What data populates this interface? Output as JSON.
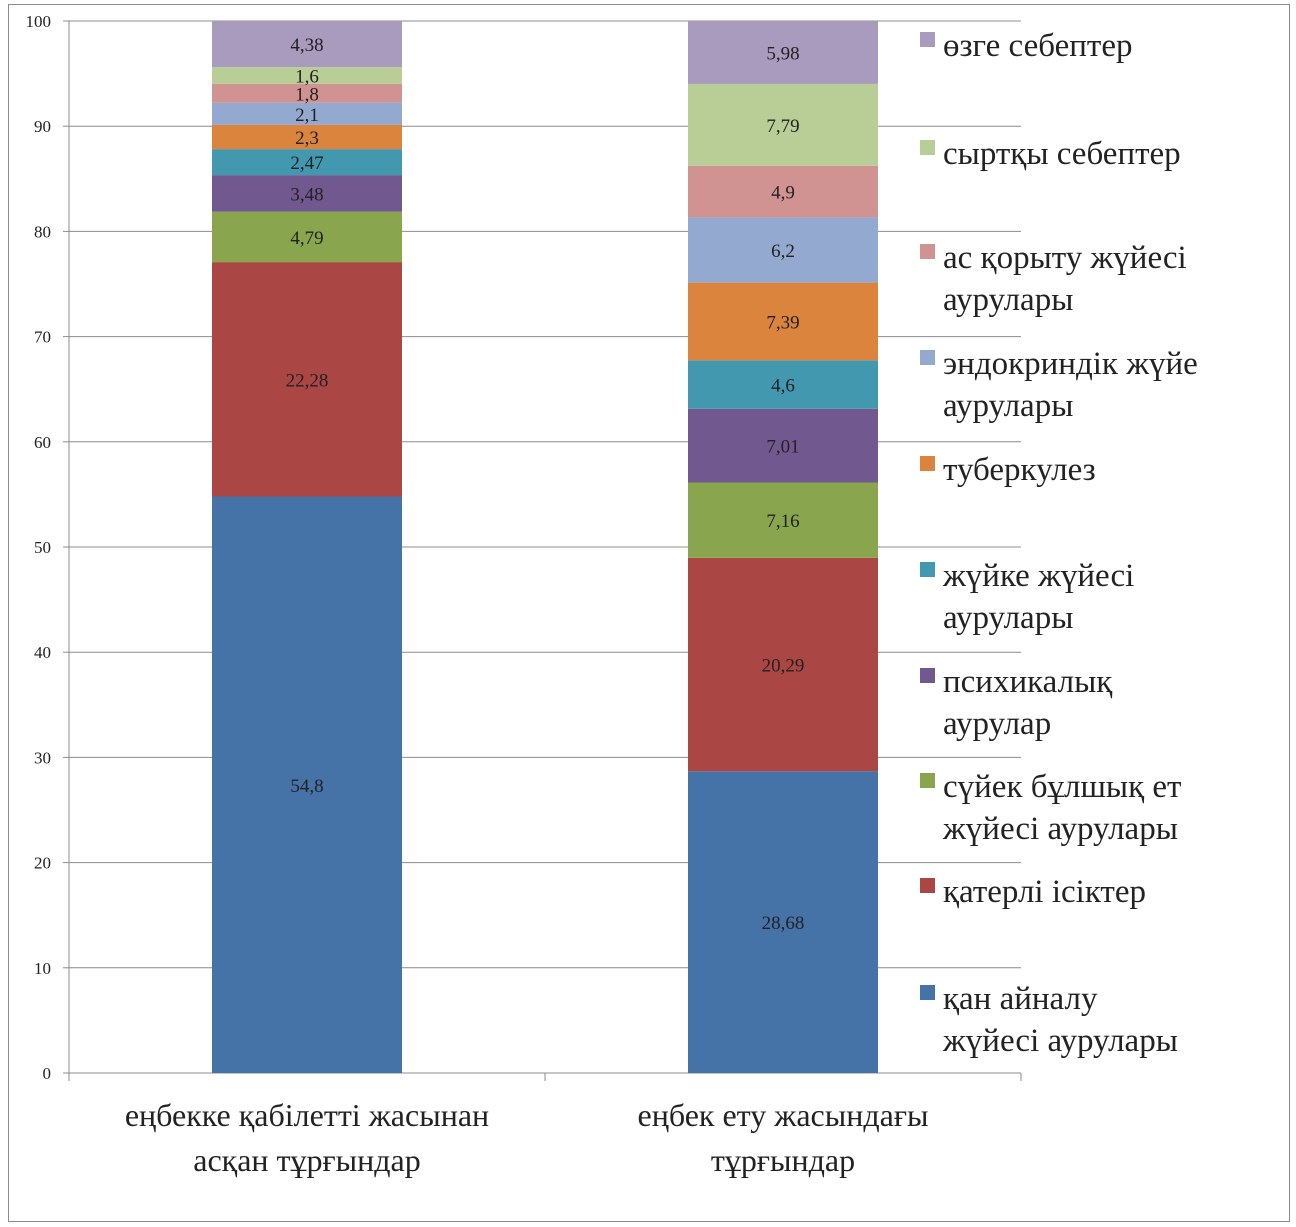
{
  "chart_data": {
    "type": "bar",
    "stacked": true,
    "ylim": [
      0,
      100
    ],
    "yticks": [
      0,
      10,
      20,
      30,
      40,
      50,
      60,
      70,
      80,
      90,
      100
    ],
    "grid": true,
    "legend_position": "right",
    "categories": [
      [
        "еңбекке қабілетті жасынан",
        "асқан тұрғындар"
      ],
      [
        "еңбек ету жасындағы",
        "тұрғындар"
      ]
    ],
    "series": [
      {
        "name": [
          "қан айналу",
          "жүйесі аурулары"
        ],
        "color": "#4572a7",
        "values": [
          54.8,
          28.68
        ],
        "labels": [
          "54,8",
          "28,68"
        ]
      },
      {
        "name": [
          "қатерлі ісіктер"
        ],
        "color": "#aa4643",
        "values": [
          22.28,
          20.29
        ],
        "labels": [
          "22,28",
          "20,29"
        ]
      },
      {
        "name": [
          "сүйек бұлшық ет",
          "жүйесі аурулары"
        ],
        "color": "#89a54e",
        "values": [
          4.79,
          7.16
        ],
        "labels": [
          "4,79",
          "7,16"
        ]
      },
      {
        "name": [
          "психикалық",
          "аурулар"
        ],
        "color": "#71588f",
        "values": [
          3.48,
          7.01
        ],
        "labels": [
          "3,48",
          "7,01"
        ]
      },
      {
        "name": [
          "жүйке жүйесі",
          "аурулары"
        ],
        "color": "#4198af",
        "values": [
          2.47,
          4.6
        ],
        "labels": [
          "2,47",
          "4,6"
        ]
      },
      {
        "name": [
          "туберкулез"
        ],
        "color": "#db843d",
        "values": [
          2.3,
          7.39
        ],
        "labels": [
          "2,3",
          "7,39"
        ]
      },
      {
        "name": [
          "эндокриндік жүйе",
          "аурулары"
        ],
        "color": "#93a9cf",
        "values": [
          2.1,
          6.2
        ],
        "labels": [
          "2,1",
          "6,2"
        ]
      },
      {
        "name": [
          "ас қорыту жүйесі",
          "аурулары"
        ],
        "color": "#d19392",
        "values": [
          1.8,
          4.9
        ],
        "labels": [
          "1,8",
          "4,9"
        ]
      },
      {
        "name": [
          "сыртқы себептер"
        ],
        "color": "#b9cd96",
        "values": [
          1.6,
          7.79
        ],
        "labels": [
          "1,6",
          "7,79"
        ]
      },
      {
        "name": [
          "өзге себептер"
        ],
        "color": "#a99bbd",
        "values": [
          4.38,
          5.98
        ],
        "labels": [
          "4,38",
          "5,98"
        ]
      }
    ]
  }
}
